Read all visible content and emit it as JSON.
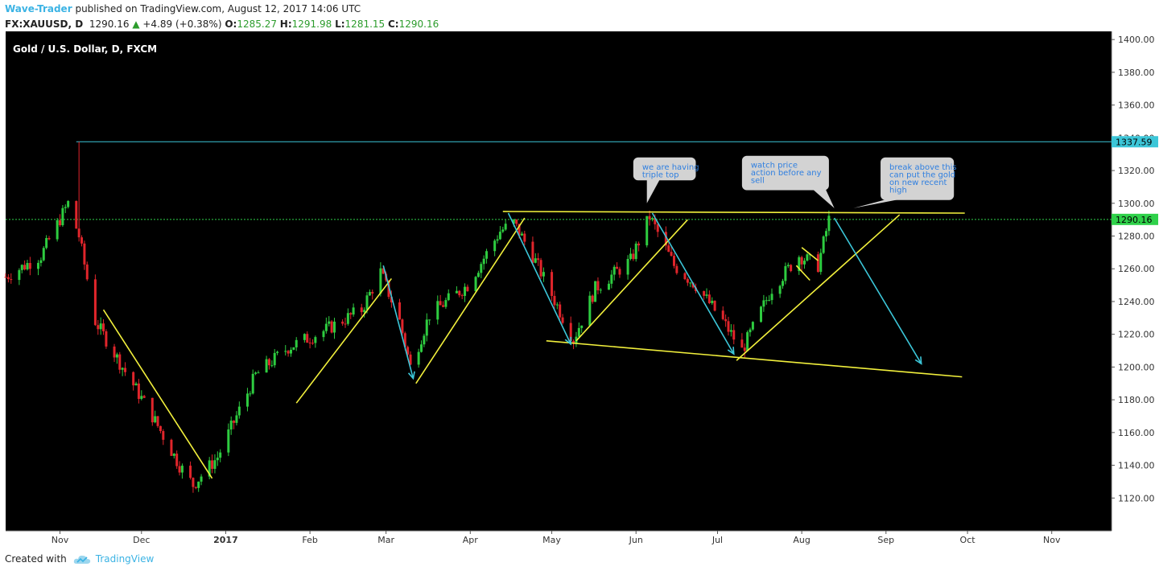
{
  "header": {
    "author": "Wave-Trader",
    "published_text": "published on TradingView.com, August 12, 2017 14:06 UTC",
    "symbol": "FX:XAUUSD, D",
    "last": "1290.16",
    "change": "+4.89 (+0.38%)",
    "o_label": "O:",
    "o_value": "1285.27",
    "h_label": "H:",
    "h_value": "1291.98",
    "l_label": "L:",
    "l_value": "1281.15",
    "c_label": "C:",
    "c_value": "1290.16"
  },
  "footer": {
    "created_with": "Created with",
    "brand": "TradingView"
  },
  "chart_data": {
    "type": "candlestick",
    "title": "Gold / U.S. Dollar, D, FXCM",
    "ylim": [
      1100,
      1405
    ],
    "y_ticks": [
      "1120.00",
      "1140.00",
      "1160.00",
      "1180.00",
      "1200.00",
      "1220.00",
      "1240.00",
      "1260.00",
      "1280.00",
      "1300.00",
      "1320.00",
      "1340.00",
      "1360.00",
      "1380.00",
      "1400.00"
    ],
    "x_ticks": [
      "Nov",
      "Dec",
      "2017",
      "Feb",
      "Mar",
      "Apr",
      "May",
      "Jun",
      "Jul",
      "Aug",
      "Sep",
      "Oct",
      "Nov"
    ],
    "x_tick_dates": [
      "2016-11-01",
      "2016-12-01",
      "2017-01-01",
      "2017-02-01",
      "2017-03-01",
      "2017-04-01",
      "2017-05-01",
      "2017-06-01",
      "2017-07-01",
      "2017-08-01",
      "2017-09-01",
      "2017-10-01",
      "2017-11-01"
    ],
    "x_range": [
      "2016-10-12",
      "2017-11-23"
    ],
    "price_levels": [
      {
        "value": 1337.59,
        "label": "1337.59",
        "color": "#3cc6d8",
        "style": "solid"
      },
      {
        "value": 1290.16,
        "label": "1290.16",
        "color": "#2fd14a",
        "style": "dotted"
      }
    ],
    "price_anchors": [
      [
        "2016-10-12",
        1255
      ],
      [
        "2016-10-25",
        1268
      ],
      [
        "2016-11-04",
        1300
      ],
      [
        "2016-11-08",
        1280
      ],
      [
        "2016-11-14",
        1228
      ],
      [
        "2016-11-24",
        1200
      ],
      [
        "2016-12-05",
        1170
      ],
      [
        "2016-12-15",
        1140
      ],
      [
        "2016-12-20",
        1128
      ],
      [
        "2016-12-29",
        1145
      ],
      [
        "2017-01-12",
        1195
      ],
      [
        "2017-01-24",
        1212
      ],
      [
        "2017-02-06",
        1222
      ],
      [
        "2017-02-20",
        1235
      ],
      [
        "2017-02-27",
        1258
      ],
      [
        "2017-03-06",
        1228
      ],
      [
        "2017-03-10",
        1200
      ],
      [
        "2017-03-17",
        1232
      ],
      [
        "2017-03-31",
        1250
      ],
      [
        "2017-04-12",
        1283
      ],
      [
        "2017-04-17",
        1288
      ],
      [
        "2017-04-24",
        1268
      ],
      [
        "2017-05-09",
        1217
      ],
      [
        "2017-05-17",
        1248
      ],
      [
        "2017-05-30",
        1265
      ],
      [
        "2017-06-06",
        1292
      ],
      [
        "2017-06-15",
        1262
      ],
      [
        "2017-06-23",
        1250
      ],
      [
        "2017-07-03",
        1228
      ],
      [
        "2017-07-10",
        1210
      ],
      [
        "2017-07-21",
        1248
      ],
      [
        "2017-07-31",
        1268
      ],
      [
        "2017-08-07",
        1262
      ],
      [
        "2017-08-11",
        1290
      ]
    ],
    "candles": [],
    "trendlines": [
      {
        "color": "#f2f03c",
        "from": [
          "2016-11-17",
          1235
        ],
        "to": [
          "2016-12-27",
          1132
        ]
      },
      {
        "color": "#f2f03c",
        "from": [
          "2017-01-27",
          1178
        ],
        "to": [
          "2017-03-03",
          1254
        ]
      },
      {
        "color": "#f2f03c",
        "from": [
          "2017-03-12",
          1190
        ],
        "to": [
          "2017-04-21",
          1291
        ]
      },
      {
        "color": "#f2f03c",
        "from": [
          "2017-04-13",
          1295
        ],
        "to": [
          "2017-09-30",
          1294
        ]
      },
      {
        "color": "#f2f03c",
        "from": [
          "2017-05-10",
          1216
        ],
        "to": [
          "2017-06-20",
          1290
        ]
      },
      {
        "color": "#f2f03c",
        "from": [
          "2017-04-29",
          1216
        ],
        "to": [
          "2017-09-29",
          1194
        ]
      },
      {
        "color": "#f2f03c",
        "from": [
          "2017-07-08",
          1204
        ],
        "to": [
          "2017-09-06",
          1293
        ]
      },
      {
        "color": "#f2f03c",
        "from": [
          "2017-07-30",
          1262
        ],
        "to": [
          "2017-08-04",
          1253
        ]
      },
      {
        "color": "#f2f03c",
        "from": [
          "2017-08-01",
          1273
        ],
        "to": [
          "2017-08-07",
          1265
        ]
      }
    ],
    "arrows": [
      {
        "color": "#3cc6d8",
        "from": [
          "2017-02-28",
          1262
        ],
        "to": [
          "2017-03-11",
          1193
        ]
      },
      {
        "color": "#3cc6d8",
        "from": [
          "2017-04-15",
          1294
        ],
        "to": [
          "2017-05-08",
          1214
        ]
      },
      {
        "color": "#3cc6d8",
        "from": [
          "2017-06-07",
          1294
        ],
        "to": [
          "2017-07-07",
          1208
        ]
      },
      {
        "color": "#3cc6d8",
        "from": [
          "2017-08-13",
          1291
        ],
        "to": [
          "2017-09-14",
          1202
        ]
      }
    ],
    "callouts": [
      {
        "text": [
          "we are having",
          "triple top"
        ],
        "box": [
          "2017-05-31",
          1328,
          "2017-06-23",
          1314
        ],
        "pointer": [
          "2017-06-05",
          1300
        ]
      },
      {
        "text": [
          "watch price",
          "action before any",
          "sell"
        ],
        "box": [
          "2017-07-10",
          1329,
          "2017-08-11",
          1308
        ],
        "pointer": [
          "2017-08-13",
          1297
        ]
      },
      {
        "text": [
          "break above this",
          "can put the gold",
          "on new recent",
          "high"
        ],
        "box": [
          "2017-08-30",
          1328,
          "2017-09-26",
          1302
        ],
        "pointer": [
          "2017-08-20",
          1297
        ]
      }
    ],
    "colors": {
      "up": "#2ecc40",
      "down": "#e0252b",
      "background": "#000000",
      "axis_text": "#333333"
    }
  }
}
